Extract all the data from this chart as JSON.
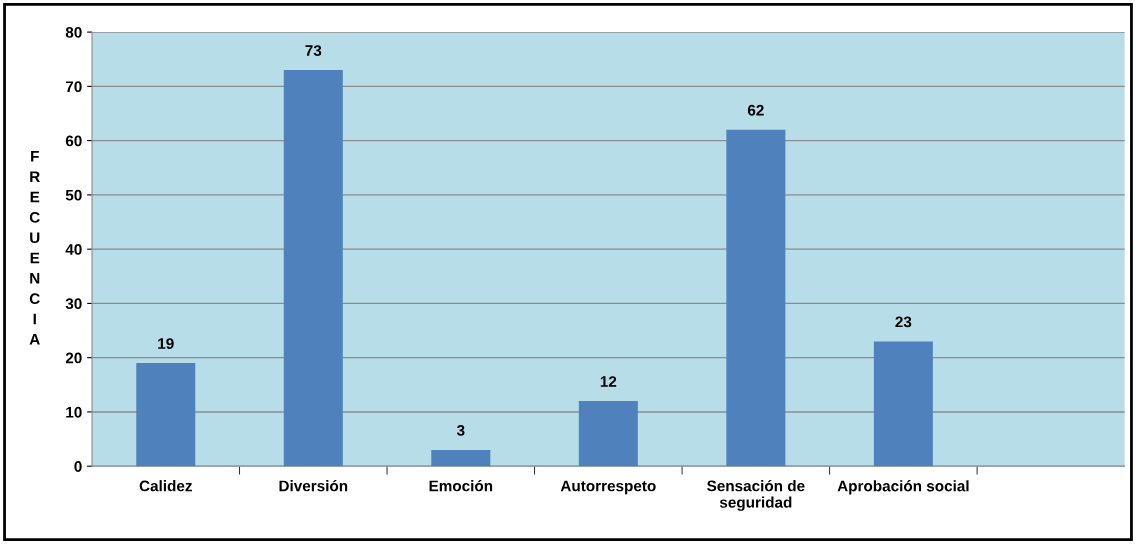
{
  "chart_data": {
    "type": "bar",
    "ylabel": "FRECUENCIA",
    "categories": [
      "Calidez",
      "Diversión",
      "Emoción",
      "Autorrespeto",
      "Sensación de\nseguridad",
      "Aprobación social",
      null
    ],
    "values": [
      19,
      73,
      3,
      12,
      62,
      23,
      null
    ],
    "color": "#4f81bd",
    "ylim": [
      0,
      80
    ],
    "yticks": [
      0,
      10,
      20,
      30,
      40,
      50,
      60,
      70,
      80
    ],
    "grid": "y",
    "data_labels": true
  }
}
